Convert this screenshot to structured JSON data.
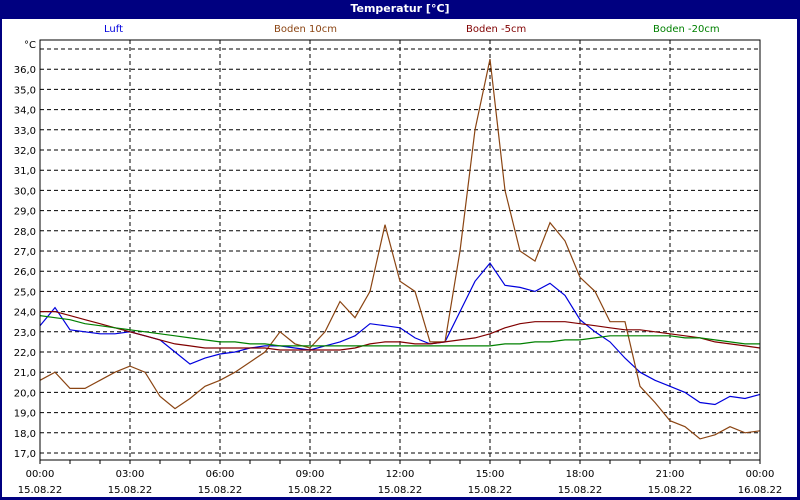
{
  "window": {
    "title": "Temperatur [°C]"
  },
  "legend": [
    {
      "label": "Luft",
      "color": "#0000dd"
    },
    {
      "label": "Boden 10cm",
      "color": "#8b4513"
    },
    {
      "label": "Boden -5cm",
      "color": "#800000"
    },
    {
      "label": "Boden -20cm",
      "color": "#008000"
    }
  ],
  "y_unit": "°C",
  "chart_data": {
    "type": "line",
    "title": "Temperatur [°C]",
    "xlabel": "",
    "ylabel": "°C",
    "ylim": [
      16.6,
      37.5
    ],
    "yticks": [
      "17,0",
      "18,0",
      "19,0",
      "20,0",
      "21,0",
      "22,0",
      "23,0",
      "24,0",
      "25,0",
      "26,0",
      "27,0",
      "28,0",
      "29,0",
      "30,0",
      "31,0",
      "32,0",
      "33,0",
      "34,0",
      "35,0",
      "36,0"
    ],
    "x_labels": [
      {
        "time": "00:00",
        "date": "15.08.22"
      },
      {
        "time": "03:00",
        "date": "15.08.22"
      },
      {
        "time": "06:00",
        "date": "15.08.22"
      },
      {
        "time": "09:00",
        "date": "15.08.22"
      },
      {
        "time": "12:00",
        "date": "15.08.22"
      },
      {
        "time": "15:00",
        "date": "15.08.22"
      },
      {
        "time": "18:00",
        "date": "15.08.22"
      },
      {
        "time": "21:00",
        "date": "15.08.22"
      },
      {
        "time": "00:00",
        "date": "16.08.22"
      }
    ],
    "x_hours": [
      0,
      0.5,
      1,
      1.5,
      2,
      2.5,
      3,
      3.5,
      4,
      4.5,
      5,
      5.5,
      6,
      6.5,
      7,
      7.5,
      8,
      8.5,
      9,
      9.5,
      10,
      10.5,
      11,
      11.5,
      12,
      12.5,
      13,
      13.5,
      14,
      14.5,
      15,
      15.5,
      16,
      16.5,
      17,
      17.5,
      18,
      18.5,
      19,
      19.5,
      20,
      20.5,
      21,
      21.5,
      22,
      22.5,
      23,
      23.5,
      24
    ],
    "grid": true,
    "legend_position": "top",
    "series": [
      {
        "name": "Luft",
        "color": "#0000dd",
        "values": [
          23.3,
          24.2,
          23.1,
          23.0,
          22.9,
          22.9,
          23.0,
          22.8,
          22.6,
          22.0,
          21.4,
          21.7,
          21.9,
          22.0,
          22.2,
          22.3,
          22.3,
          22.2,
          22.1,
          22.3,
          22.5,
          22.8,
          23.4,
          23.3,
          23.2,
          22.7,
          22.4,
          22.5,
          24.0,
          25.5,
          26.4,
          25.3,
          25.2,
          25.0,
          25.4,
          24.8,
          23.6,
          23.0,
          22.5,
          21.7,
          21.0,
          20.6,
          20.3,
          20.0,
          19.5,
          19.4,
          19.8,
          19.7,
          19.9
        ]
      },
      {
        "name": "Boden 10cm",
        "color": "#8b4513",
        "values": [
          20.6,
          21.0,
          20.2,
          20.2,
          20.6,
          21.0,
          21.3,
          21.0,
          19.8,
          19.2,
          19.7,
          20.3,
          20.6,
          21.0,
          21.5,
          22.0,
          23.0,
          22.4,
          22.2,
          23.0,
          24.5,
          23.7,
          25.0,
          28.3,
          25.5,
          25.0,
          22.5,
          22.5,
          27.0,
          33.0,
          36.5,
          30.0,
          27.0,
          26.5,
          28.4,
          27.5,
          25.7,
          25.0,
          23.5,
          23.5,
          20.3,
          19.5,
          18.6,
          18.3,
          17.7,
          17.9,
          18.3,
          18.0,
          18.1
        ]
      },
      {
        "name": "Boden -5cm",
        "color": "#800000",
        "values": [
          24.0,
          24.0,
          23.8,
          23.6,
          23.4,
          23.2,
          23.0,
          22.8,
          22.6,
          22.4,
          22.3,
          22.2,
          22.2,
          22.2,
          22.2,
          22.2,
          22.1,
          22.1,
          22.1,
          22.1,
          22.1,
          22.2,
          22.4,
          22.5,
          22.5,
          22.4,
          22.4,
          22.5,
          22.6,
          22.7,
          22.9,
          23.2,
          23.4,
          23.5,
          23.5,
          23.5,
          23.4,
          23.3,
          23.2,
          23.1,
          23.1,
          23.0,
          22.9,
          22.8,
          22.7,
          22.5,
          22.4,
          22.3,
          22.2
        ]
      },
      {
        "name": "Boden -20cm",
        "color": "#008000",
        "values": [
          23.8,
          23.7,
          23.6,
          23.4,
          23.3,
          23.2,
          23.1,
          23.0,
          22.9,
          22.8,
          22.7,
          22.6,
          22.5,
          22.5,
          22.4,
          22.4,
          22.3,
          22.3,
          22.3,
          22.3,
          22.3,
          22.3,
          22.3,
          22.3,
          22.3,
          22.3,
          22.3,
          22.3,
          22.3,
          22.3,
          22.3,
          22.4,
          22.4,
          22.5,
          22.5,
          22.6,
          22.6,
          22.7,
          22.8,
          22.8,
          22.8,
          22.8,
          22.8,
          22.7,
          22.7,
          22.6,
          22.5,
          22.4,
          22.4
        ]
      }
    ]
  }
}
